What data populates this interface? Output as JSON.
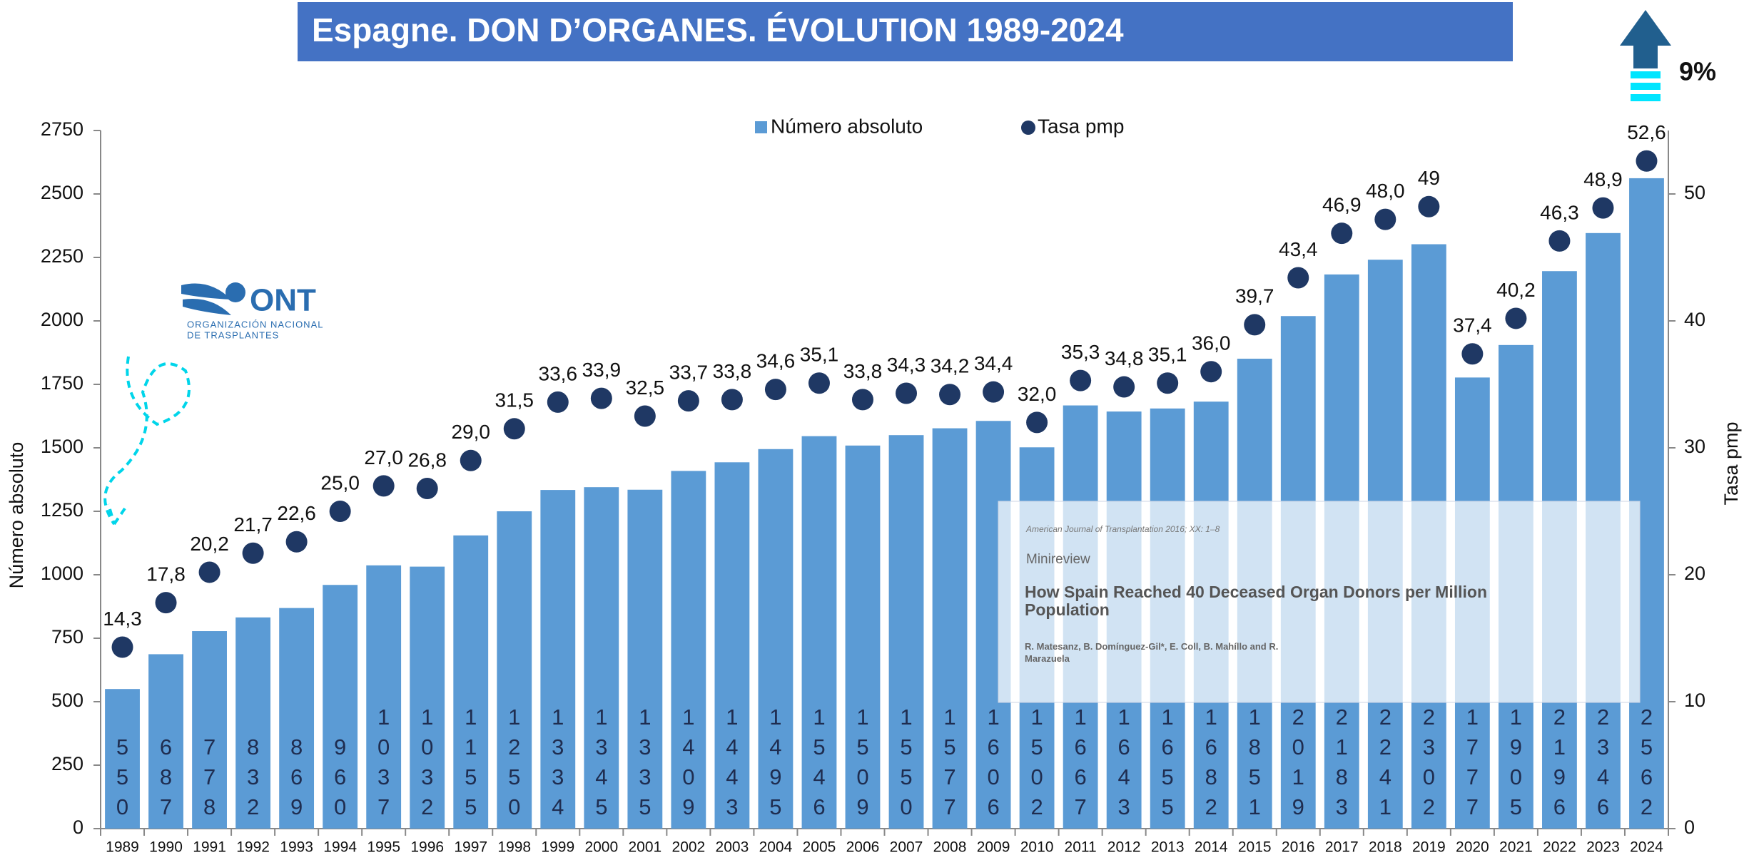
{
  "chart_data": {
    "type": "bar_line",
    "title": "Espagne. DON D’ORGANES. ÉVOLUTION 1989-2024",
    "annotations": {
      "change": "9%",
      "logo": "ONT",
      "logo_line1": "ORGANIZACIÓN NACIONAL",
      "logo_line2": "DE TRASPLANTES",
      "paper_journal": "American Journal of Transplantation 2016; XX: 1–8",
      "paper_kind": "Minireview",
      "paper_title": "How Spain Reached 40 Deceased Organ Donors per Million Population",
      "paper_authors": "R. Matesanz, B. Domínguez-Gil*, E. Coll, B. Mahíllo and R. Marazuela"
    },
    "y_label": "Número absoluto",
    "y2_label": "Tasa pmp",
    "categories": [
      "1989",
      "1990",
      "1991",
      "1992",
      "1993",
      "1994",
      "1995",
      "1996",
      "1997",
      "1998",
      "1999",
      "2000",
      "2001",
      "2002",
      "2003",
      "2004",
      "2005",
      "2006",
      "2007",
      "2008",
      "2009",
      "2010",
      "2011",
      "2012",
      "2013",
      "2014",
      "2015",
      "2016",
      "2017",
      "2018",
      "2019",
      "2020",
      "2021",
      "2022",
      "2023",
      "2024"
    ],
    "series": [
      {
        "name": "Número absoluto",
        "color": "#5b9bd5",
        "kind": "bar",
        "values": [
          550,
          687,
          778,
          832,
          869,
          960,
          1037,
          1032,
          1155,
          1250,
          1334,
          1345,
          1335,
          1409,
          1443,
          1495,
          1546,
          1509,
          1550,
          1577,
          1606,
          1502,
          1667,
          1643,
          1655,
          1682,
          1851,
          2019,
          2183,
          2241,
          2302,
          1777,
          1905,
          2196,
          2346,
          2562
        ]
      },
      {
        "name": "Tasa pmp",
        "color": "#1f3864",
        "kind": "dot",
        "axis": "y2",
        "values": [
          14.3,
          17.8,
          20.2,
          21.7,
          22.6,
          25.0,
          27.0,
          26.8,
          29.0,
          31.5,
          33.6,
          33.9,
          32.5,
          33.7,
          33.8,
          34.6,
          35.1,
          33.8,
          34.3,
          34.2,
          34.4,
          32.0,
          35.3,
          34.8,
          35.1,
          36.0,
          39.7,
          43.4,
          46.9,
          48.0,
          49,
          37.4,
          40.2,
          46.3,
          48.9,
          52.6
        ],
        "value_labels": [
          "14,3",
          "17,8",
          "20,2",
          "21,7",
          "22,6",
          "25,0",
          "27,0",
          "26,8",
          "29,0",
          "31,5",
          "33,6",
          "33,9",
          "32,5",
          "33,7",
          "33,8",
          "34,6",
          "35,1",
          "33,8",
          "34,3",
          "34,2",
          "34,4",
          "32,0",
          "35,3",
          "34,8",
          "35,1",
          "36,0",
          "39,7",
          "43,4",
          "46,9",
          "48,0",
          "49",
          "37,4",
          "40,2",
          "46,3",
          "48,9",
          "52,6"
        ]
      }
    ],
    "ylim": [
      0,
      2750
    ],
    "yticks": [
      0,
      250,
      500,
      750,
      1000,
      1250,
      1500,
      1750,
      2000,
      2250,
      2500,
      2750
    ],
    "y2lim": [
      0,
      55
    ],
    "y2ticks": [
      0,
      10,
      20,
      30,
      40,
      50
    ],
    "legend": "top"
  }
}
